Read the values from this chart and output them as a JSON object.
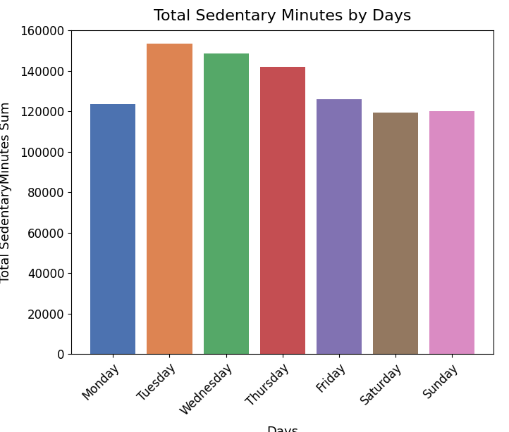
{
  "categories": [
    "Monday",
    "Tuesday",
    "Wednesday",
    "Thursday",
    "Friday",
    "Saturday",
    "Sunday"
  ],
  "values": [
    123500,
    153500,
    148500,
    142000,
    126000,
    119500,
    120000
  ],
  "bar_colors": [
    "#4c72b0",
    "#dd8452",
    "#55a868",
    "#c44e52",
    "#8172b2",
    "#937860",
    "#da8bc3"
  ],
  "title": "Total Sedentary Minutes by Days",
  "xlabel": "Days",
  "ylabel": "Total SedentaryMinutes Sum",
  "ylim": [
    0,
    160000
  ],
  "yticks": [
    0,
    20000,
    40000,
    60000,
    80000,
    100000,
    120000,
    140000,
    160000
  ],
  "title_fontsize": 16,
  "label_fontsize": 13,
  "tick_fontsize": 12,
  "bar_width": 0.8
}
